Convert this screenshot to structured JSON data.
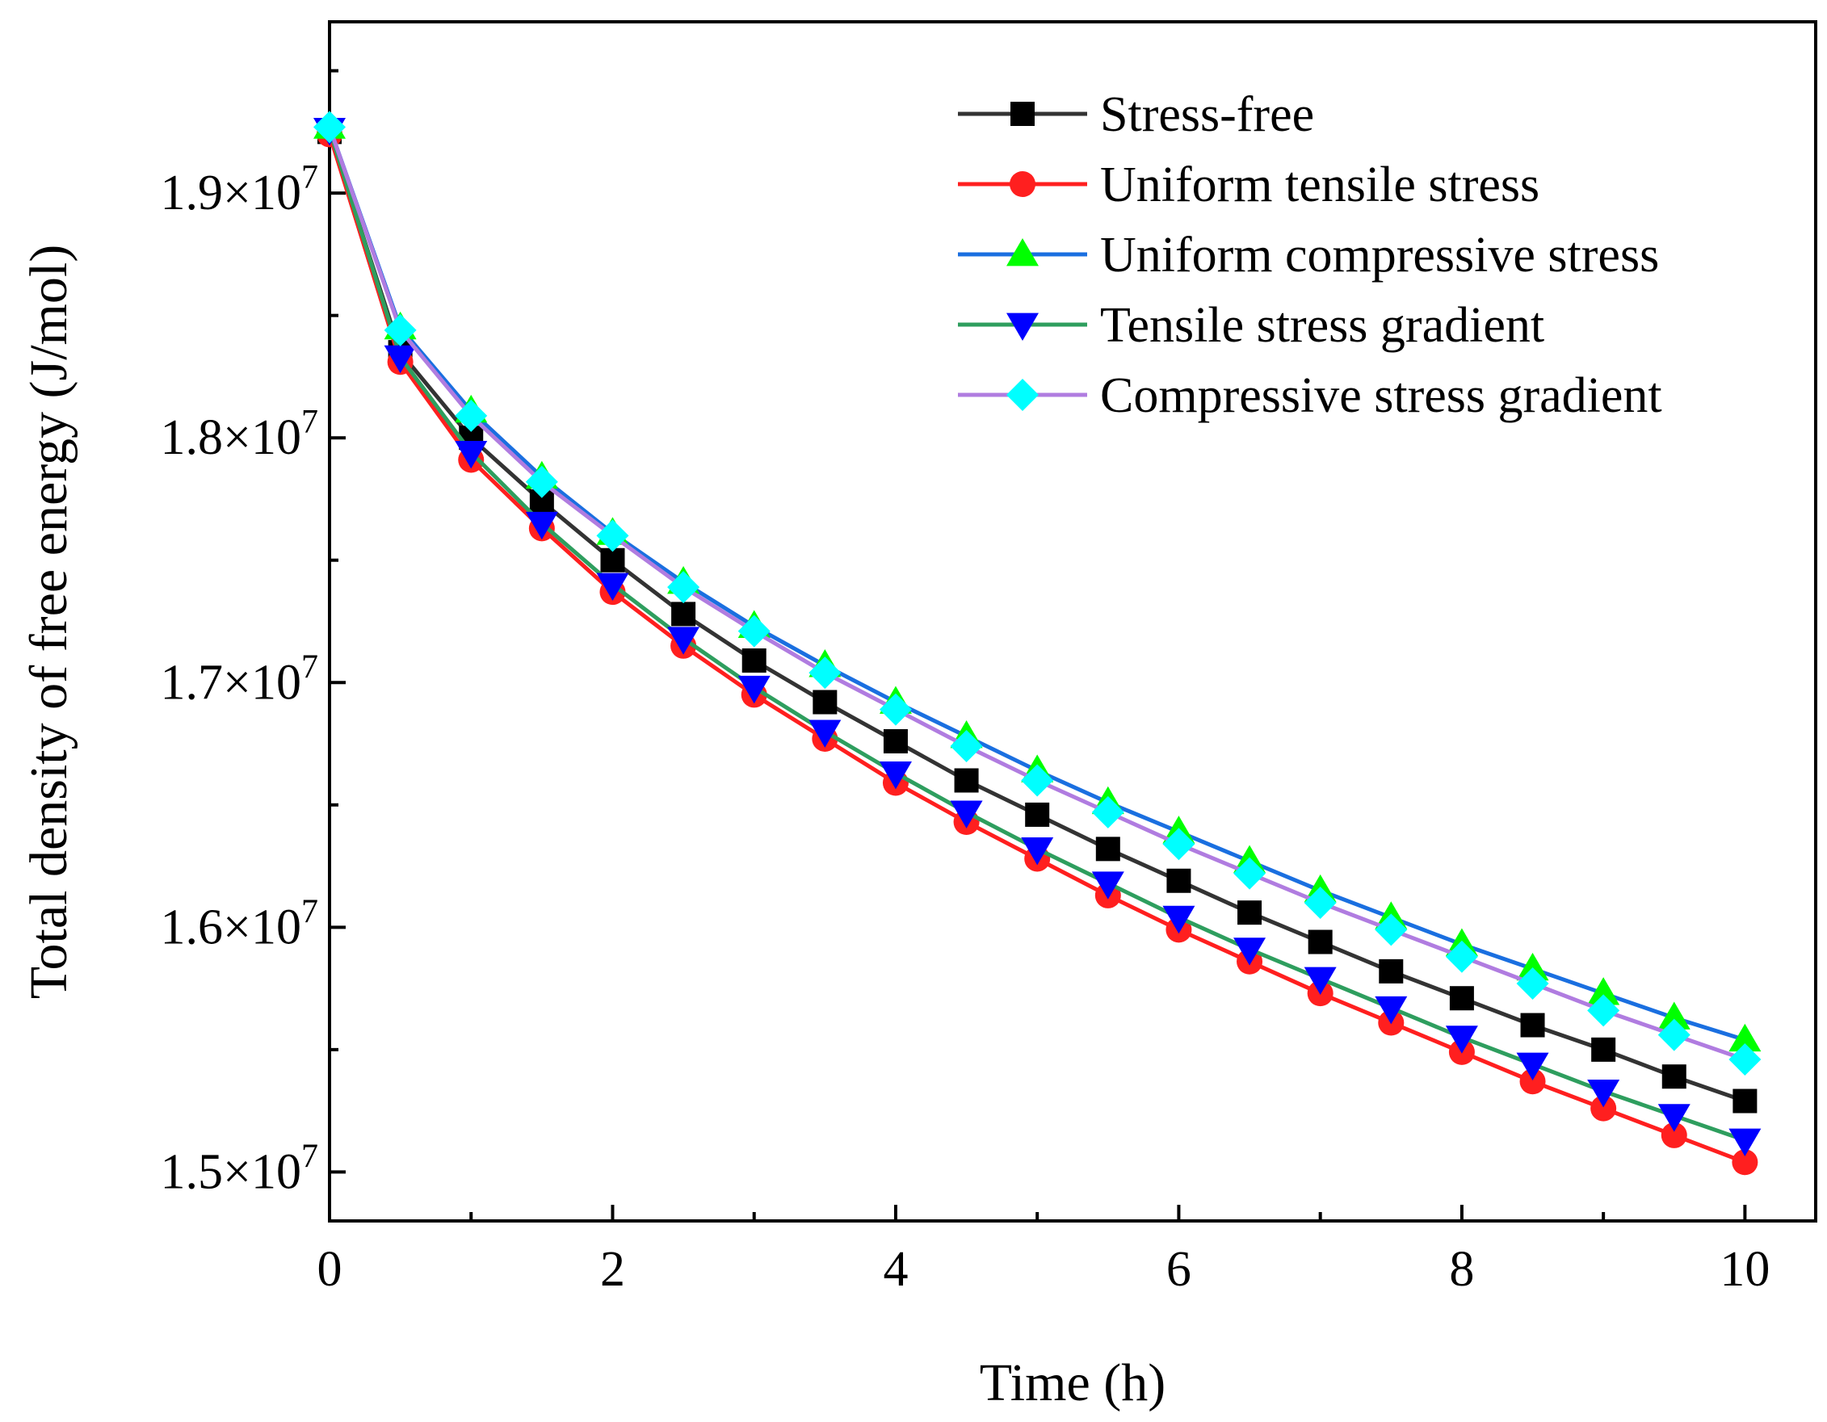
{
  "chart_data": {
    "type": "line",
    "title": "",
    "xlabel": "Time (h)",
    "ylabel": "Total density of free energy (J/mol)",
    "xlim": [
      0,
      10.5
    ],
    "ylim": [
      14800000,
      19700000
    ],
    "x_ticks": [
      0,
      2,
      4,
      6,
      8,
      10
    ],
    "x_tick_labels": [
      "0",
      "2",
      "4",
      "6",
      "8",
      "10"
    ],
    "y_ticks": [
      15000000,
      16000000,
      17000000,
      18000000,
      19000000
    ],
    "y_tick_labels": [
      {
        "mantissa": "1.5",
        "base": "×10",
        "exp": "7"
      },
      {
        "mantissa": "1.6",
        "base": "×10",
        "exp": "7"
      },
      {
        "mantissa": "1.7",
        "base": "×10",
        "exp": "7"
      },
      {
        "mantissa": "1.8",
        "base": "×10",
        "exp": "7"
      },
      {
        "mantissa": "1.9",
        "base": "×10",
        "exp": "7"
      }
    ],
    "grid": false,
    "legend_position": "top-right",
    "x": [
      0,
      0.5,
      1,
      1.5,
      2,
      2.5,
      3,
      3.5,
      4,
      4.5,
      5,
      5.5,
      6,
      6.5,
      7,
      7.5,
      8,
      8.5,
      9,
      9.5,
      10
    ],
    "series": [
      {
        "name": "Stress-free",
        "line_color": "#333333",
        "marker_color": "#000000",
        "marker": "square",
        "values": [
          19250000,
          18350000,
          18000000,
          17740000,
          17500000,
          17280000,
          17090000,
          16920000,
          16760000,
          16600000,
          16460000,
          16320000,
          16190000,
          16060000,
          15940000,
          15820000,
          15710000,
          15600000,
          15500000,
          15390000,
          15290000
        ]
      },
      {
        "name": "Uniform tensile stress",
        "line_color": "#ff1f1f",
        "marker_color": "#ff1f1f",
        "marker": "circle",
        "values": [
          19240000,
          18310000,
          17910000,
          17630000,
          17370000,
          17150000,
          16950000,
          16770000,
          16590000,
          16430000,
          16280000,
          16130000,
          15990000,
          15860000,
          15730000,
          15610000,
          15490000,
          15370000,
          15260000,
          15150000,
          15040000
        ]
      },
      {
        "name": "Uniform compressive stress",
        "line_color": "#1a6fe0",
        "marker_color": "#00ff00",
        "marker": "triangle-up",
        "values": [
          19270000,
          18450000,
          18110000,
          17840000,
          17610000,
          17410000,
          17230000,
          17070000,
          16920000,
          16780000,
          16640000,
          16510000,
          16390000,
          16270000,
          16150000,
          16040000,
          15930000,
          15830000,
          15730000,
          15630000,
          15540000
        ]
      },
      {
        "name": "Tensile stress gradient",
        "line_color": "#2e9e5e",
        "marker_color": "#0000ff",
        "marker": "triangle-down",
        "values": [
          19260000,
          18330000,
          17940000,
          17650000,
          17400000,
          17180000,
          16980000,
          16800000,
          16630000,
          16470000,
          16320000,
          16180000,
          16040000,
          15910000,
          15790000,
          15670000,
          15550000,
          15440000,
          15330000,
          15230000,
          15130000
        ]
      },
      {
        "name": "Compressive stress gradient",
        "line_color": "#b07ce0",
        "marker_color": "#00ffff",
        "marker": "diamond",
        "values": [
          19270000,
          18440000,
          18090000,
          17820000,
          17600000,
          17390000,
          17210000,
          17040000,
          16890000,
          16740000,
          16600000,
          16470000,
          16340000,
          16220000,
          16100000,
          15990000,
          15880000,
          15770000,
          15660000,
          15560000,
          15460000
        ]
      }
    ]
  }
}
